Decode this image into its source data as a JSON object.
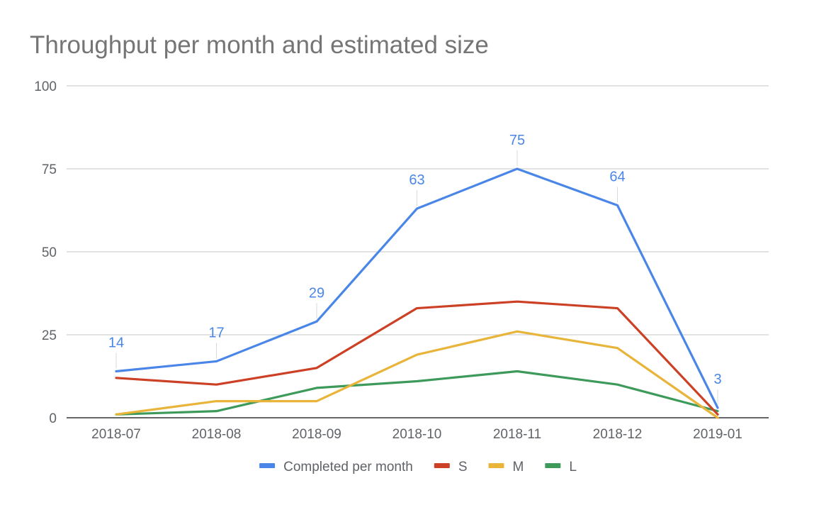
{
  "chart_data": {
    "type": "line",
    "title": "Throughput per month and estimated size",
    "xlabel": "",
    "ylabel": "",
    "categories": [
      "2018-07",
      "2018-08",
      "2018-09",
      "2018-10",
      "2018-11",
      "2018-12",
      "2019-01"
    ],
    "ylim": [
      0,
      100
    ],
    "yticks": [
      0,
      25,
      50,
      75,
      100
    ],
    "grid": true,
    "legend_position": "bottom",
    "series": [
      {
        "name": "Completed per month",
        "color": "#4a86e8",
        "values": [
          14,
          17,
          29,
          63,
          75,
          64,
          3
        ],
        "data_labels": true
      },
      {
        "name": "S",
        "color": "#cc4125",
        "values": [
          12,
          10,
          15,
          33,
          35,
          33,
          1
        ],
        "data_labels": false
      },
      {
        "name": "M",
        "color": "#e8b43a",
        "values": [
          1,
          5,
          5,
          19,
          26,
          21,
          0
        ],
        "data_labels": false
      },
      {
        "name": "L",
        "color": "#3d9a5a",
        "values": [
          1,
          2,
          9,
          11,
          14,
          10,
          2
        ],
        "data_labels": false
      }
    ]
  }
}
